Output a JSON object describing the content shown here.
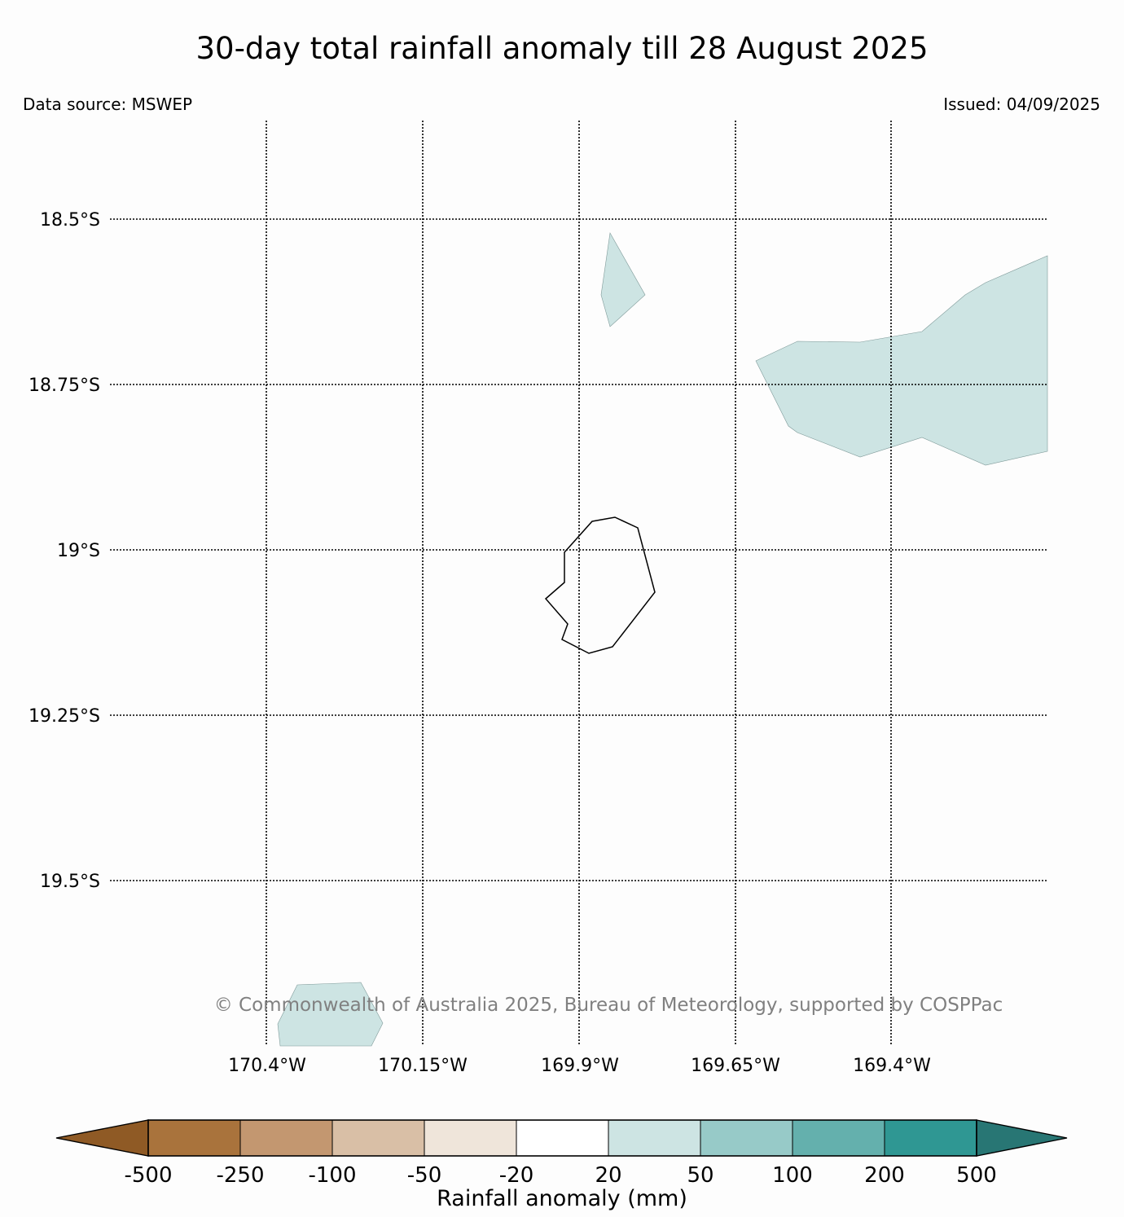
{
  "title": "30-day total rainfall anomaly till 28 August 2025",
  "data_source": "Data source: MSWEP",
  "issued": "Issued: 04/09/2025",
  "copyright": "© Commonwealth of Australia 2025, Bureau of Meteorology, supported by COSPPac",
  "map": {
    "latitude_labels": [
      "18.5°S",
      "18.75°S",
      "19°S",
      "19.25°S",
      "19.5°S"
    ],
    "longitude_labels": [
      "170.4°W",
      "170.15°W",
      "169.9°W",
      "169.65°W",
      "169.4°W"
    ],
    "gridlines": "dotted",
    "island": "Niue outline"
  },
  "colorbar": {
    "title": "Rainfall anomaly (mm)",
    "tick_labels": [
      "-500",
      "-250",
      "-100",
      "-50",
      "-20",
      "20",
      "50",
      "100",
      "200",
      "500"
    ],
    "colors": [
      "#8f5a25",
      "#a9733c",
      "#c39770",
      "#d9bfa6",
      "#efe5da",
      "#ffffff",
      "#cde4e3",
      "#97cac8",
      "#64b0ad",
      "#2f9793",
      "#287674"
    ],
    "extend": "both"
  },
  "anomaly_color_shown": "#cde4e3"
}
